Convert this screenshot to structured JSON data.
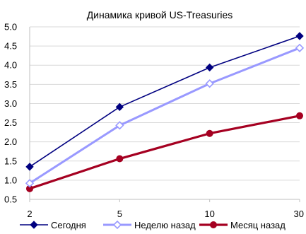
{
  "chart_data": {
    "type": "line",
    "title": "Динамика кривой US-Treasuries",
    "xlabel": "",
    "ylabel": "",
    "x": [
      2,
      5,
      10,
      30
    ],
    "x_tick_labels": [
      "2",
      "5",
      "10",
      "30"
    ],
    "ylim": [
      0.5,
      5.0
    ],
    "y_ticks": [
      "0.5",
      "1.0",
      "1.5",
      "2.0",
      "2.5",
      "3.0",
      "3.5",
      "4.0",
      "4.5",
      "5.0"
    ],
    "grid": "horizontal",
    "legend_position": "bottom",
    "series": [
      {
        "name": "Сегодня",
        "color": "#000080",
        "marker": "diamond-filled",
        "values": [
          1.35,
          2.91,
          3.94,
          4.76
        ]
      },
      {
        "name": "Неделю назад",
        "color": "#9999ff",
        "marker": "diamond-open",
        "values": [
          0.92,
          2.43,
          3.52,
          4.45
        ]
      },
      {
        "name": "Месяц назад",
        "color": "#a50021",
        "marker": "circle-filled",
        "values": [
          0.78,
          1.56,
          2.22,
          2.68
        ]
      }
    ]
  }
}
